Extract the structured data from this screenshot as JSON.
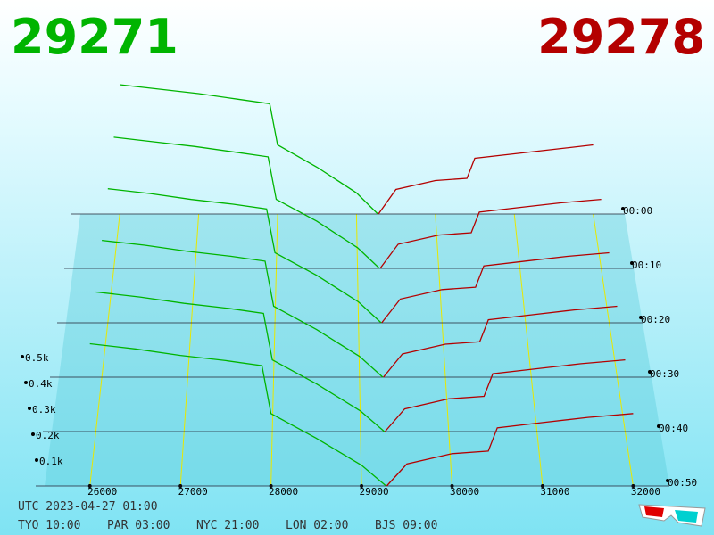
{
  "chart_data": {
    "type": "depth3d",
    "bid_price": 29271,
    "ask_price": 29278,
    "bid_color": "#00b400",
    "ask_color": "#b40000",
    "xlim": [
      25500,
      32400
    ],
    "xticks": [
      26000,
      27000,
      28000,
      29000,
      30000,
      31000,
      32000
    ],
    "ylim": [
      0,
      600
    ],
    "yticks": [
      {
        "value": 100,
        "label": "0.1k"
      },
      {
        "value": 200,
        "label": "0.2k"
      },
      {
        "value": 300,
        "label": "0.3k"
      },
      {
        "value": 400,
        "label": "0.4k"
      },
      {
        "value": 500,
        "label": "0.5k"
      }
    ],
    "bid_x": [
      26000,
      26500,
      27000,
      27500,
      27900,
      28000,
      28500,
      29000,
      29271
    ],
    "ask_x": [
      29278,
      29500,
      30000,
      30400,
      30500,
      31000,
      31500,
      32000
    ],
    "rows": [
      {
        "time": "00:00",
        "bids": [
          580,
          560,
          540,
          515,
          495,
          310,
          210,
          95,
          0
        ],
        "asks": [
          0,
          110,
          150,
          160,
          250,
          270,
          290,
          310
        ]
      },
      {
        "time": "00:10",
        "bids": [
          570,
          550,
          530,
          505,
          485,
          300,
          205,
          90,
          0
        ],
        "asks": [
          0,
          105,
          145,
          155,
          245,
          265,
          285,
          300
        ]
      },
      {
        "time": "00:20",
        "bids": [
          565,
          545,
          520,
          500,
          480,
          295,
          200,
          88,
          0
        ],
        "asks": [
          0,
          100,
          140,
          150,
          240,
          260,
          280,
          295
        ]
      },
      {
        "time": "00:30",
        "bids": [
          560,
          540,
          515,
          495,
          475,
          290,
          195,
          85,
          0
        ],
        "asks": [
          0,
          95,
          135,
          145,
          235,
          255,
          275,
          290
        ]
      },
      {
        "time": "00:40",
        "bids": [
          555,
          535,
          510,
          490,
          470,
          285,
          190,
          82,
          0
        ],
        "asks": [
          0,
          90,
          130,
          140,
          230,
          250,
          270,
          285
        ]
      },
      {
        "time": "00:50",
        "bids": [
          550,
          530,
          505,
          485,
          465,
          280,
          185,
          80,
          0
        ],
        "asks": [
          0,
          85,
          125,
          135,
          225,
          245,
          265,
          280
        ]
      }
    ],
    "utc": "UTC 2023-04-27 01:00",
    "clocks": [
      "TYO 10:00",
      "PAR 03:00",
      "NYC 21:00",
      "LON 02:00",
      "BJS 09:00"
    ]
  }
}
